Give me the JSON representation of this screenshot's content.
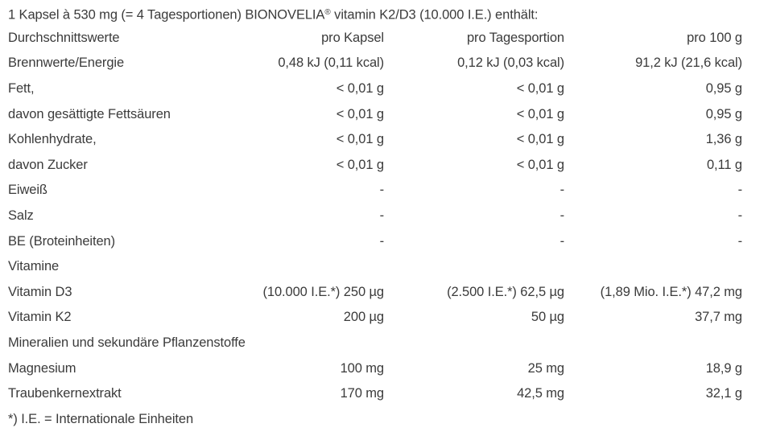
{
  "title": {
    "pre": "1 Kapsel à 530 mg (= 4 Tagesportionen) BIONOVELIA",
    "reg": "®",
    "post": " vitamin K2/D3 (10.000 I.E.) enthält:"
  },
  "table": {
    "headers": [
      "Durchschnittswerte",
      "pro Kapsel",
      "pro Tagesportion",
      "pro 100 g"
    ],
    "rows": [
      [
        "Brennwerte/Energie",
        "0,48 kJ (0,11 kcal)",
        "0,12 kJ (0,03 kcal)",
        "91,2 kJ (21,6 kcal)"
      ],
      [
        "Fett,",
        "< 0,01 g",
        "< 0,01 g",
        "0,95 g"
      ],
      [
        "davon gesättigte Fettsäuren",
        "< 0,01 g",
        "< 0,01 g",
        "0,95 g"
      ],
      [
        "Kohlenhydrate,",
        "< 0,01 g",
        "< 0,01 g",
        "1,36 g"
      ],
      [
        "davon Zucker",
        "< 0,01 g",
        "< 0,01 g",
        "0,11 g"
      ],
      [
        "Eiweiß",
        "-",
        "-",
        "-"
      ],
      [
        "Salz",
        "-",
        "-",
        "-"
      ],
      [
        "BE (Broteinheiten)",
        "-",
        "-",
        "-"
      ],
      [
        "Vitamine",
        "",
        "",
        ""
      ],
      [
        "Vitamin D3",
        "(10.000 I.E.*) 250 µg",
        "(2.500 I.E.*) 62,5 µg",
        "(1,89 Mio. I.E.*) 47,2 mg"
      ],
      [
        "Vitamin K2",
        "200 µg",
        "50 µg",
        "37,7 mg"
      ],
      [
        "Mineralien und sekundäre Pflanzenstoffe",
        "",
        "",
        ""
      ],
      [
        "Magnesium",
        "100 mg",
        "25 mg",
        "18,9 g"
      ],
      [
        "Traubenkernextrakt",
        "170 mg",
        "42,5 mg",
        "32,1 g"
      ]
    ]
  },
  "footnote": "*) I.E. = Internationale Einheiten",
  "colors": {
    "text": "#3b3b3b",
    "background": "#ffffff"
  }
}
